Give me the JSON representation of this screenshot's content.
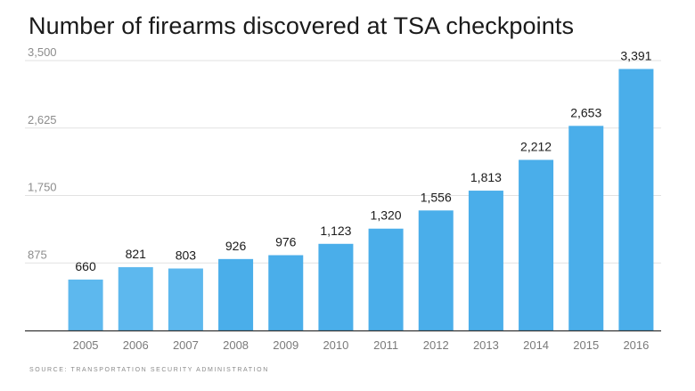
{
  "chart_data": {
    "type": "bar",
    "title": "Number of firearms discovered at TSA checkpoints",
    "source": "SOURCE: TRANSPORTATION SECURITY ADMINISTRATION",
    "categories": [
      "2005",
      "2006",
      "2007",
      "2008",
      "2009",
      "2010",
      "2011",
      "2012",
      "2013",
      "2014",
      "2015",
      "2016"
    ],
    "values": [
      660,
      821,
      803,
      926,
      976,
      1123,
      1320,
      1556,
      1813,
      2212,
      2653,
      3391
    ],
    "value_labels": [
      "660",
      "821",
      "803",
      "926",
      "976",
      "1,123",
      "1,320",
      "1,556",
      "1,813",
      "2,212",
      "2,653",
      "3,391"
    ],
    "ylim": [
      0,
      3500
    ],
    "yticks": [
      875,
      1750,
      2625,
      3500
    ],
    "ytick_labels": [
      "875",
      "1,750",
      "2,625",
      "3,500"
    ],
    "grid": true,
    "xlabel": "",
    "ylabel": "",
    "colors": {
      "bar_early": "#5db8ee",
      "bar": "#4aaeea",
      "grid": "#e2e2e2",
      "baseline": "#333333"
    }
  }
}
